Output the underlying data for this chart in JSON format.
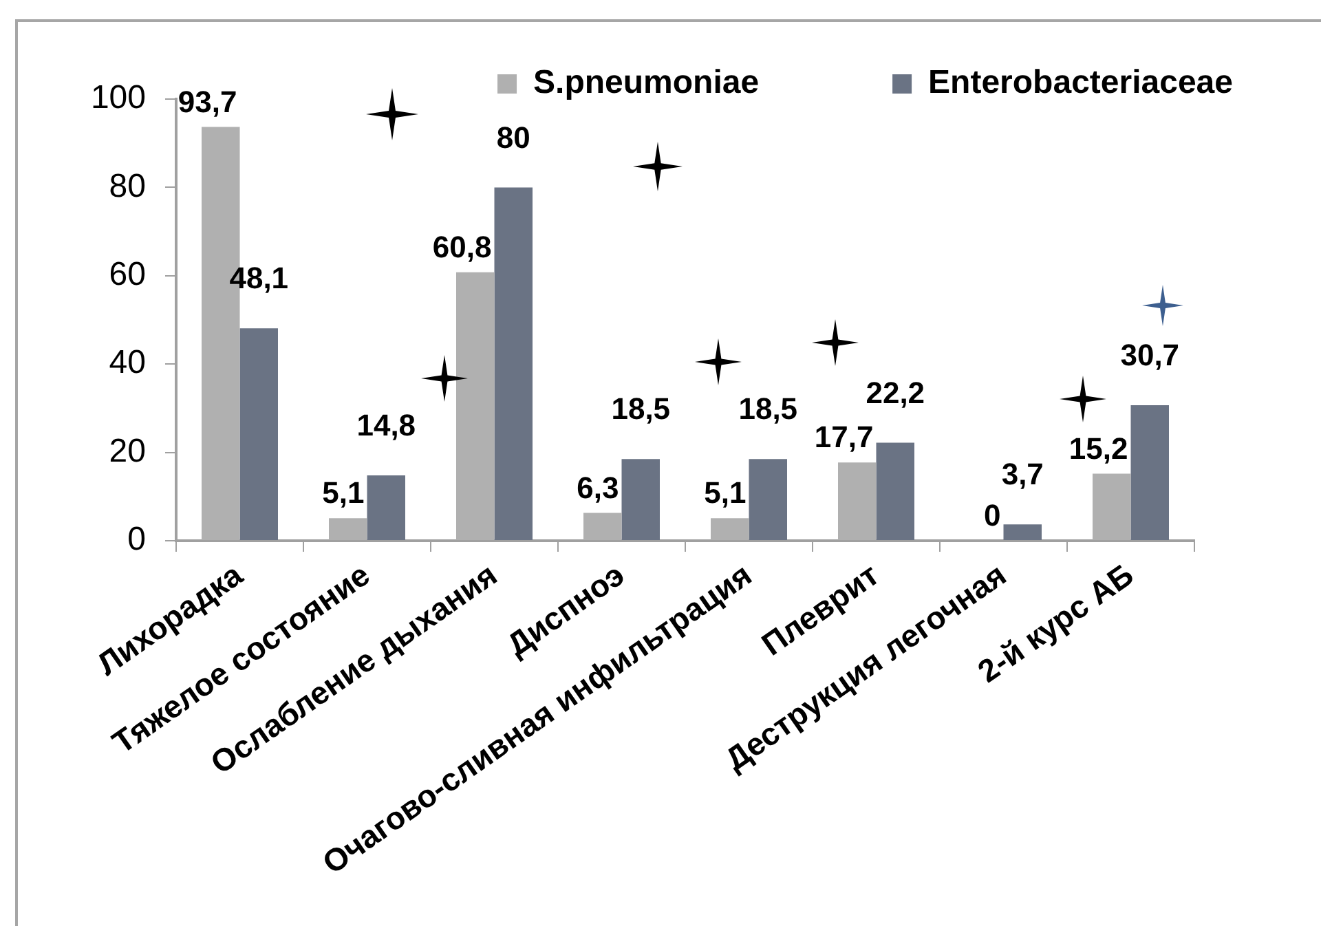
{
  "chart_data": {
    "type": "bar",
    "categories": [
      "Лихорадка",
      "Тяжелое состояние",
      "Ослабление дыхания",
      "Диспноэ",
      "Очагово-сливная инфильтрация",
      "Плеврит",
      "Деструкция легочная",
      "2-й курс АБ"
    ],
    "series": [
      {
        "name": "S.pneumoniae",
        "color": "#b0b0b0",
        "values": [
          93.7,
          5.1,
          60.8,
          6.3,
          5.1,
          17.7,
          0,
          15.2
        ],
        "value_labels": [
          "93,7",
          "5,1",
          "60,8",
          "6,3",
          "5,1",
          "17,7",
          "0",
          "15,2"
        ]
      },
      {
        "name": "Enterobacteriaceae",
        "color": "#6a7384",
        "values": [
          48.1,
          14.8,
          80,
          18.5,
          18.5,
          22.2,
          3.7,
          30.7
        ],
        "value_labels": [
          "48,1",
          "14,8",
          "80",
          "18,5",
          "18,5",
          "22,2",
          "3,7",
          "30,7"
        ]
      }
    ],
    "ylim": [
      0,
      100
    ],
    "yticks": [
      0,
      20,
      40,
      60,
      80,
      100
    ],
    "legend": "top right"
  }
}
